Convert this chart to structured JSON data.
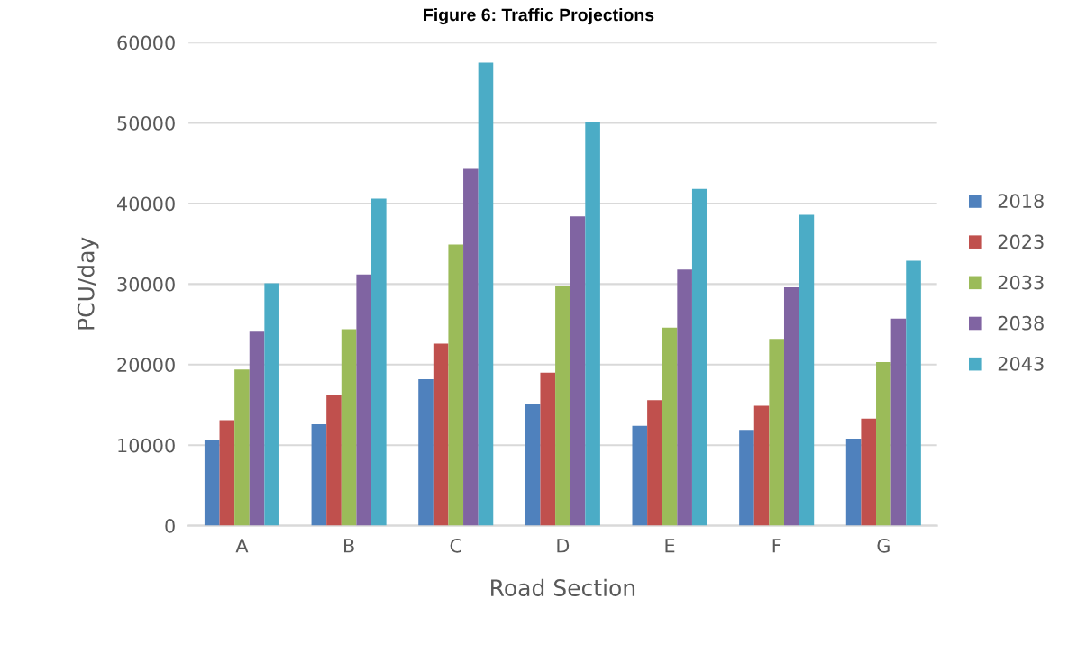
{
  "chart_data": {
    "type": "bar",
    "title": "Figure 6: Traffic Projections",
    "xlabel": "Road Section",
    "ylabel": "PCU/day",
    "categories": [
      "A",
      "B",
      "C",
      "D",
      "E",
      "F",
      "G"
    ],
    "series": [
      {
        "name": "2018",
        "color": "#4f81bd",
        "values": [
          10600,
          12600,
          18200,
          15100,
          12400,
          11900,
          10800
        ]
      },
      {
        "name": "2023",
        "color": "#c0504d",
        "values": [
          13100,
          16200,
          22600,
          19000,
          15600,
          14900,
          13300
        ]
      },
      {
        "name": "2033",
        "color": "#9bbb59",
        "values": [
          19400,
          24400,
          34900,
          29800,
          24600,
          23200,
          20300
        ]
      },
      {
        "name": "2038",
        "color": "#8064a2",
        "values": [
          24100,
          31200,
          44300,
          38400,
          31800,
          29600,
          25700
        ]
      },
      {
        "name": "2043",
        "color": "#4bacc6",
        "values": [
          30100,
          40600,
          57500,
          50100,
          41800,
          38600,
          32900
        ]
      }
    ],
    "ylim": [
      0,
      60000
    ],
    "yticks": [
      0,
      10000,
      20000,
      30000,
      40000,
      50000,
      60000
    ],
    "grid": "y",
    "legend": "right"
  }
}
